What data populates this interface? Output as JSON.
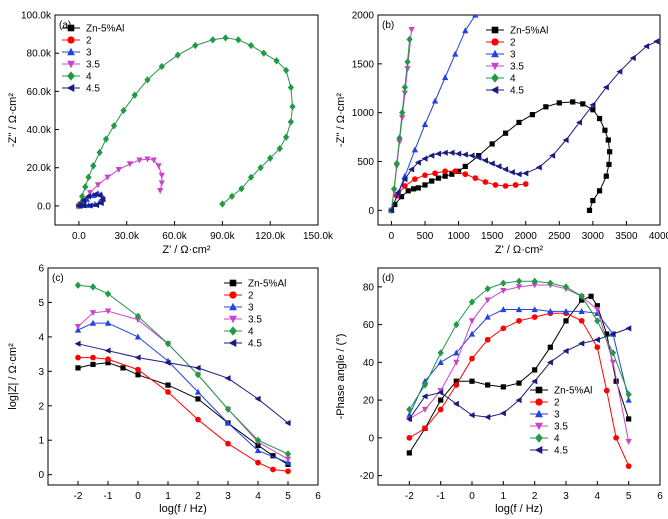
{
  "figure": {
    "colors": [
      "#000000",
      "#ff0000",
      "#2244dd",
      "#cc44cc",
      "#229944",
      "#1a1a80"
    ],
    "series_names": [
      "Zn-5%Al",
      "2",
      "3",
      "3.5",
      "4",
      "4.5"
    ]
  },
  "chart_data": [
    {
      "panel": "(a)",
      "type": "line",
      "xlabel": "Z' / Ω·cm²",
      "ylabel": "-Z'' / Ω·cm²",
      "xlim": [
        -15000,
        150000
      ],
      "ylim": [
        -10000,
        100000
      ],
      "xticks": [
        "0.0",
        "30.0k",
        "60.0k",
        "90.0k",
        "120.0k",
        "150.0k"
      ],
      "xtick_values": [
        0,
        30000,
        60000,
        90000,
        120000,
        150000
      ],
      "yticks": [
        "0.0",
        "20.0k",
        "40.0k",
        "60.0k",
        "80.0k",
        "100.0k"
      ],
      "ytick_values": [
        0,
        20000,
        40000,
        60000,
        80000,
        100000
      ],
      "legend": "top-left",
      "series": [
        {
          "name": "Zn-5%Al",
          "marker": "square",
          "x": [
            0,
            1000,
            2000,
            2600,
            3000
          ],
          "y": [
            0,
            800,
            1100,
            800,
            300
          ]
        },
        {
          "name": "2",
          "marker": "circle",
          "x": [
            0,
            600,
            1200,
            1800,
            2000
          ],
          "y": [
            0,
            300,
            400,
            250,
            200
          ]
        },
        {
          "name": "3",
          "marker": "triangle-up",
          "x": [
            0,
            2000,
            5000,
            9000,
            12000,
            14000,
            15000,
            13000,
            10000,
            6000,
            3000,
            1000
          ],
          "y": [
            0,
            1500,
            3500,
            5500,
            6500,
            6000,
            4000,
            2000,
            800,
            300,
            300,
            300
          ]
        },
        {
          "name": "3.5",
          "marker": "triangle-down",
          "x": [
            0,
            3000,
            7000,
            12000,
            18000,
            25000,
            32000,
            38000,
            43000,
            47000,
            50000,
            52000,
            52000,
            51000
          ],
          "y": [
            0,
            3000,
            7000,
            11000,
            15000,
            19000,
            22000,
            24000,
            24500,
            24000,
            21000,
            16000,
            12000,
            8000
          ]
        },
        {
          "name": "4",
          "marker": "diamond",
          "x": [
            0,
            2000,
            4000,
            6000,
            9000,
            13000,
            17000,
            22000,
            28000,
            35000,
            43000,
            52000,
            62000,
            73000,
            84000,
            92000,
            100000,
            108000,
            116000,
            124000,
            130000,
            133000,
            134000,
            133000,
            130000,
            126000,
            120000,
            114000,
            108000,
            102000,
            96000,
            90000
          ],
          "y": [
            0,
            5000,
            10000,
            15000,
            21000,
            28000,
            35000,
            42000,
            50000,
            58000,
            66000,
            73000,
            79000,
            84000,
            87000,
            88000,
            87000,
            84000,
            80000,
            76000,
            71000,
            62000,
            52000,
            44000,
            36000,
            30000,
            25000,
            20000,
            15000,
            9000,
            5000,
            1000
          ]
        },
        {
          "name": "4.5",
          "marker": "triangle-left",
          "x": [
            0,
            3000,
            6000,
            10000,
            13000,
            15000,
            14000,
            11000,
            7000,
            3000,
            500
          ],
          "y": [
            0,
            3000,
            5000,
            6000,
            5500,
            3500,
            1500,
            500,
            200,
            300,
            500
          ]
        }
      ]
    },
    {
      "panel": "(b)",
      "type": "line",
      "xlabel": "Z' / Ω·cm²",
      "ylabel": "-Z'' / Ω·cm²",
      "xlim": [
        -200,
        4000
      ],
      "ylim": [
        -150,
        2000
      ],
      "xticks": [
        "0",
        "500",
        "1000",
        "1500",
        "2000",
        "2500",
        "3000",
        "3500",
        "4000"
      ],
      "xtick_values": [
        0,
        500,
        1000,
        1500,
        2000,
        2500,
        3000,
        3500,
        4000
      ],
      "yticks": [
        "0",
        "500",
        "1000",
        "1500",
        "2000"
      ],
      "ytick_values": [
        0,
        500,
        1000,
        1500,
        2000
      ],
      "legend": "top-center",
      "series": [
        {
          "name": "Zn-5%Al",
          "marker": "square",
          "x": [
            0,
            50,
            150,
            250,
            330,
            400,
            500,
            600,
            700,
            800,
            900,
            1000,
            1100,
            1300,
            1500,
            1700,
            1900,
            2100,
            2300,
            2500,
            2700,
            2850,
            3000,
            3100,
            3180,
            3230,
            3250,
            3240,
            3200,
            3100,
            3000,
            2950
          ],
          "y": [
            0,
            60,
            140,
            200,
            220,
            230,
            260,
            300,
            330,
            350,
            370,
            400,
            450,
            560,
            680,
            790,
            900,
            980,
            1060,
            1100,
            1110,
            1090,
            1030,
            940,
            820,
            720,
            600,
            470,
            350,
            200,
            100,
            0
          ]
        },
        {
          "name": "2",
          "marker": "circle",
          "x": [
            0,
            80,
            200,
            350,
            500,
            650,
            800,
            950,
            1100,
            1250,
            1400,
            1550,
            1700,
            1850,
            2000
          ],
          "y": [
            0,
            150,
            250,
            320,
            360,
            380,
            400,
            400,
            370,
            330,
            290,
            260,
            250,
            260,
            270
          ]
        },
        {
          "name": "3",
          "marker": "triangle-up",
          "x": [
            0,
            100,
            200,
            350,
            500,
            650,
            800,
            950,
            1100,
            1250
          ],
          "y": [
            0,
            180,
            350,
            620,
            880,
            1120,
            1360,
            1600,
            1840,
            2000
          ]
        },
        {
          "name": "3.5",
          "marker": "triangle-down",
          "x": [
            0,
            40,
            80,
            120,
            160,
            200,
            240,
            300
          ],
          "y": [
            0,
            200,
            450,
            700,
            950,
            1200,
            1450,
            1850
          ]
        },
        {
          "name": "4",
          "marker": "diamond",
          "x": [
            0,
            40,
            80,
            120,
            160,
            200,
            240,
            270
          ],
          "y": [
            0,
            220,
            480,
            740,
            1000,
            1260,
            1520,
            1750
          ]
        },
        {
          "name": "4.5",
          "marker": "triangle-left",
          "x": [
            0,
            100,
            200,
            300,
            400,
            500,
            600,
            700,
            800,
            900,
            1000,
            1100,
            1200,
            1300,
            1400,
            1500,
            1600,
            1700,
            1800,
            1900,
            2000,
            2200,
            2400,
            2600,
            2800,
            3000,
            3200,
            3400,
            3600,
            3800,
            3950
          ],
          "y": [
            0,
            180,
            320,
            420,
            490,
            530,
            560,
            580,
            590,
            590,
            580,
            570,
            560,
            540,
            510,
            480,
            450,
            420,
            390,
            370,
            380,
            440,
            560,
            720,
            900,
            1080,
            1260,
            1420,
            1560,
            1680,
            1730
          ]
        }
      ]
    },
    {
      "panel": "(c)",
      "type": "line",
      "xlabel": "log(f / Hz)",
      "ylabel": "log|Z| / Ω·cm²",
      "xlim": [
        -3,
        6
      ],
      "ylim": [
        -0.3,
        6
      ],
      "xticks": [
        "-2",
        "-1",
        "0",
        "1",
        "2",
        "3",
        "4",
        "5",
        "6"
      ],
      "xtick_values": [
        -2,
        -1,
        0,
        1,
        2,
        3,
        4,
        5,
        6
      ],
      "yticks": [
        "0",
        "1",
        "2",
        "3",
        "4",
        "5",
        "6"
      ],
      "ytick_values": [
        0,
        1,
        2,
        3,
        4,
        5,
        6
      ],
      "legend": "top-right",
      "series": [
        {
          "name": "Zn-5%Al",
          "marker": "square",
          "x": [
            -2,
            -1.5,
            -1,
            -0.5,
            0,
            1,
            2,
            3,
            4,
            4.5,
            5
          ],
          "y": [
            3.1,
            3.2,
            3.25,
            3.1,
            2.9,
            2.6,
            2.2,
            1.5,
            0.85,
            0.55,
            0.3
          ]
        },
        {
          "name": "2",
          "marker": "circle",
          "x": [
            -2,
            -1.5,
            -1,
            0,
            1,
            2,
            3,
            4,
            4.5,
            5
          ],
          "y": [
            3.4,
            3.4,
            3.35,
            3.05,
            2.4,
            1.6,
            0.9,
            0.35,
            0.15,
            0.1
          ]
        },
        {
          "name": "3",
          "marker": "triangle-up",
          "x": [
            -2,
            -1.5,
            -1,
            0,
            1,
            2,
            3,
            4,
            5
          ],
          "y": [
            4.2,
            4.4,
            4.4,
            4.0,
            3.3,
            2.4,
            1.5,
            0.7,
            0.35
          ]
        },
        {
          "name": "3.5",
          "marker": "triangle-down",
          "x": [
            -2,
            -1.5,
            -1,
            0,
            1,
            2,
            3,
            4,
            5
          ],
          "y": [
            4.3,
            4.7,
            4.75,
            4.5,
            3.8,
            2.9,
            1.9,
            0.95,
            0.45
          ]
        },
        {
          "name": "4",
          "marker": "diamond",
          "x": [
            -2,
            -1.5,
            -1,
            0,
            1,
            2,
            3,
            4,
            5
          ],
          "y": [
            5.5,
            5.45,
            5.25,
            4.6,
            3.8,
            2.9,
            1.9,
            1.0,
            0.6
          ]
        },
        {
          "name": "4.5",
          "marker": "triangle-left",
          "x": [
            -2,
            -1,
            0,
            1,
            2,
            3,
            4,
            5
          ],
          "y": [
            3.8,
            3.6,
            3.4,
            3.25,
            3.1,
            2.8,
            2.2,
            1.5
          ]
        }
      ]
    },
    {
      "panel": "(d)",
      "type": "line",
      "xlabel": "log(f / Hz)",
      "ylabel": "-Phase angle / (°)",
      "xlim": [
        -3,
        6
      ],
      "ylim": [
        -25,
        90
      ],
      "xticks": [
        "-2",
        "-1",
        "0",
        "1",
        "2",
        "3",
        "4",
        "5",
        "6"
      ],
      "xtick_values": [
        -2,
        -1,
        0,
        1,
        2,
        3,
        4,
        5,
        6
      ],
      "yticks": [
        "-20",
        "0",
        "20",
        "40",
        "60",
        "80"
      ],
      "ytick_values": [
        -20,
        0,
        20,
        40,
        60,
        80
      ],
      "legend": "bottom-center",
      "series": [
        {
          "name": "Zn-5%Al",
          "marker": "square",
          "x": [
            -2,
            -1.5,
            -1,
            -0.5,
            0,
            0.5,
            1,
            1.5,
            2,
            2.5,
            3,
            3.5,
            3.8,
            4,
            4.3,
            4.6,
            5
          ],
          "y": [
            -8,
            5,
            20,
            30,
            30,
            28,
            27,
            29,
            36,
            48,
            62,
            73,
            75,
            70,
            55,
            30,
            10
          ]
        },
        {
          "name": "2",
          "marker": "circle",
          "x": [
            -2,
            -1.5,
            -1,
            -0.5,
            0,
            0.5,
            1,
            1.5,
            2,
            2.5,
            3,
            3.5,
            4,
            4.3,
            4.6,
            5
          ],
          "y": [
            0,
            5,
            15,
            28,
            42,
            52,
            58,
            62,
            64,
            66,
            66,
            62,
            48,
            25,
            0,
            -15
          ]
        },
        {
          "name": "3",
          "marker": "triangle-up",
          "x": [
            -2,
            -1.5,
            -1,
            -0.5,
            0,
            0.5,
            1,
            1.5,
            2,
            2.5,
            3,
            3.5,
            4,
            4.5,
            5
          ],
          "y": [
            12,
            30,
            40,
            45,
            55,
            64,
            68,
            68,
            68,
            67,
            67,
            67,
            66,
            55,
            20
          ]
        },
        {
          "name": "3.5",
          "marker": "triangle-down",
          "x": [
            -2,
            -1.5,
            -1,
            -0.5,
            0,
            0.5,
            1,
            1.5,
            2,
            2.5,
            3,
            3.5,
            4,
            4.5,
            5
          ],
          "y": [
            10,
            15,
            25,
            40,
            62,
            73,
            78,
            80,
            81,
            81,
            79,
            75,
            68,
            40,
            -2
          ]
        },
        {
          "name": "4",
          "marker": "diamond",
          "x": [
            -2,
            -1.5,
            -1,
            -0.5,
            0,
            0.5,
            1,
            1.5,
            2,
            2.5,
            3,
            3.5,
            4,
            4.5,
            5
          ],
          "y": [
            15,
            28,
            45,
            60,
            72,
            79,
            82,
            83,
            83,
            82,
            80,
            75,
            62,
            45,
            23
          ]
        },
        {
          "name": "4.5",
          "marker": "triangle-left",
          "x": [
            -2,
            -1.5,
            -1,
            -0.5,
            0,
            0.5,
            1,
            1.5,
            2,
            2.5,
            3,
            3.5,
            4,
            4.5,
            5
          ],
          "y": [
            10,
            22,
            24,
            18,
            12,
            11,
            13,
            20,
            30,
            40,
            46,
            50,
            52,
            55,
            58
          ]
        }
      ]
    }
  ]
}
